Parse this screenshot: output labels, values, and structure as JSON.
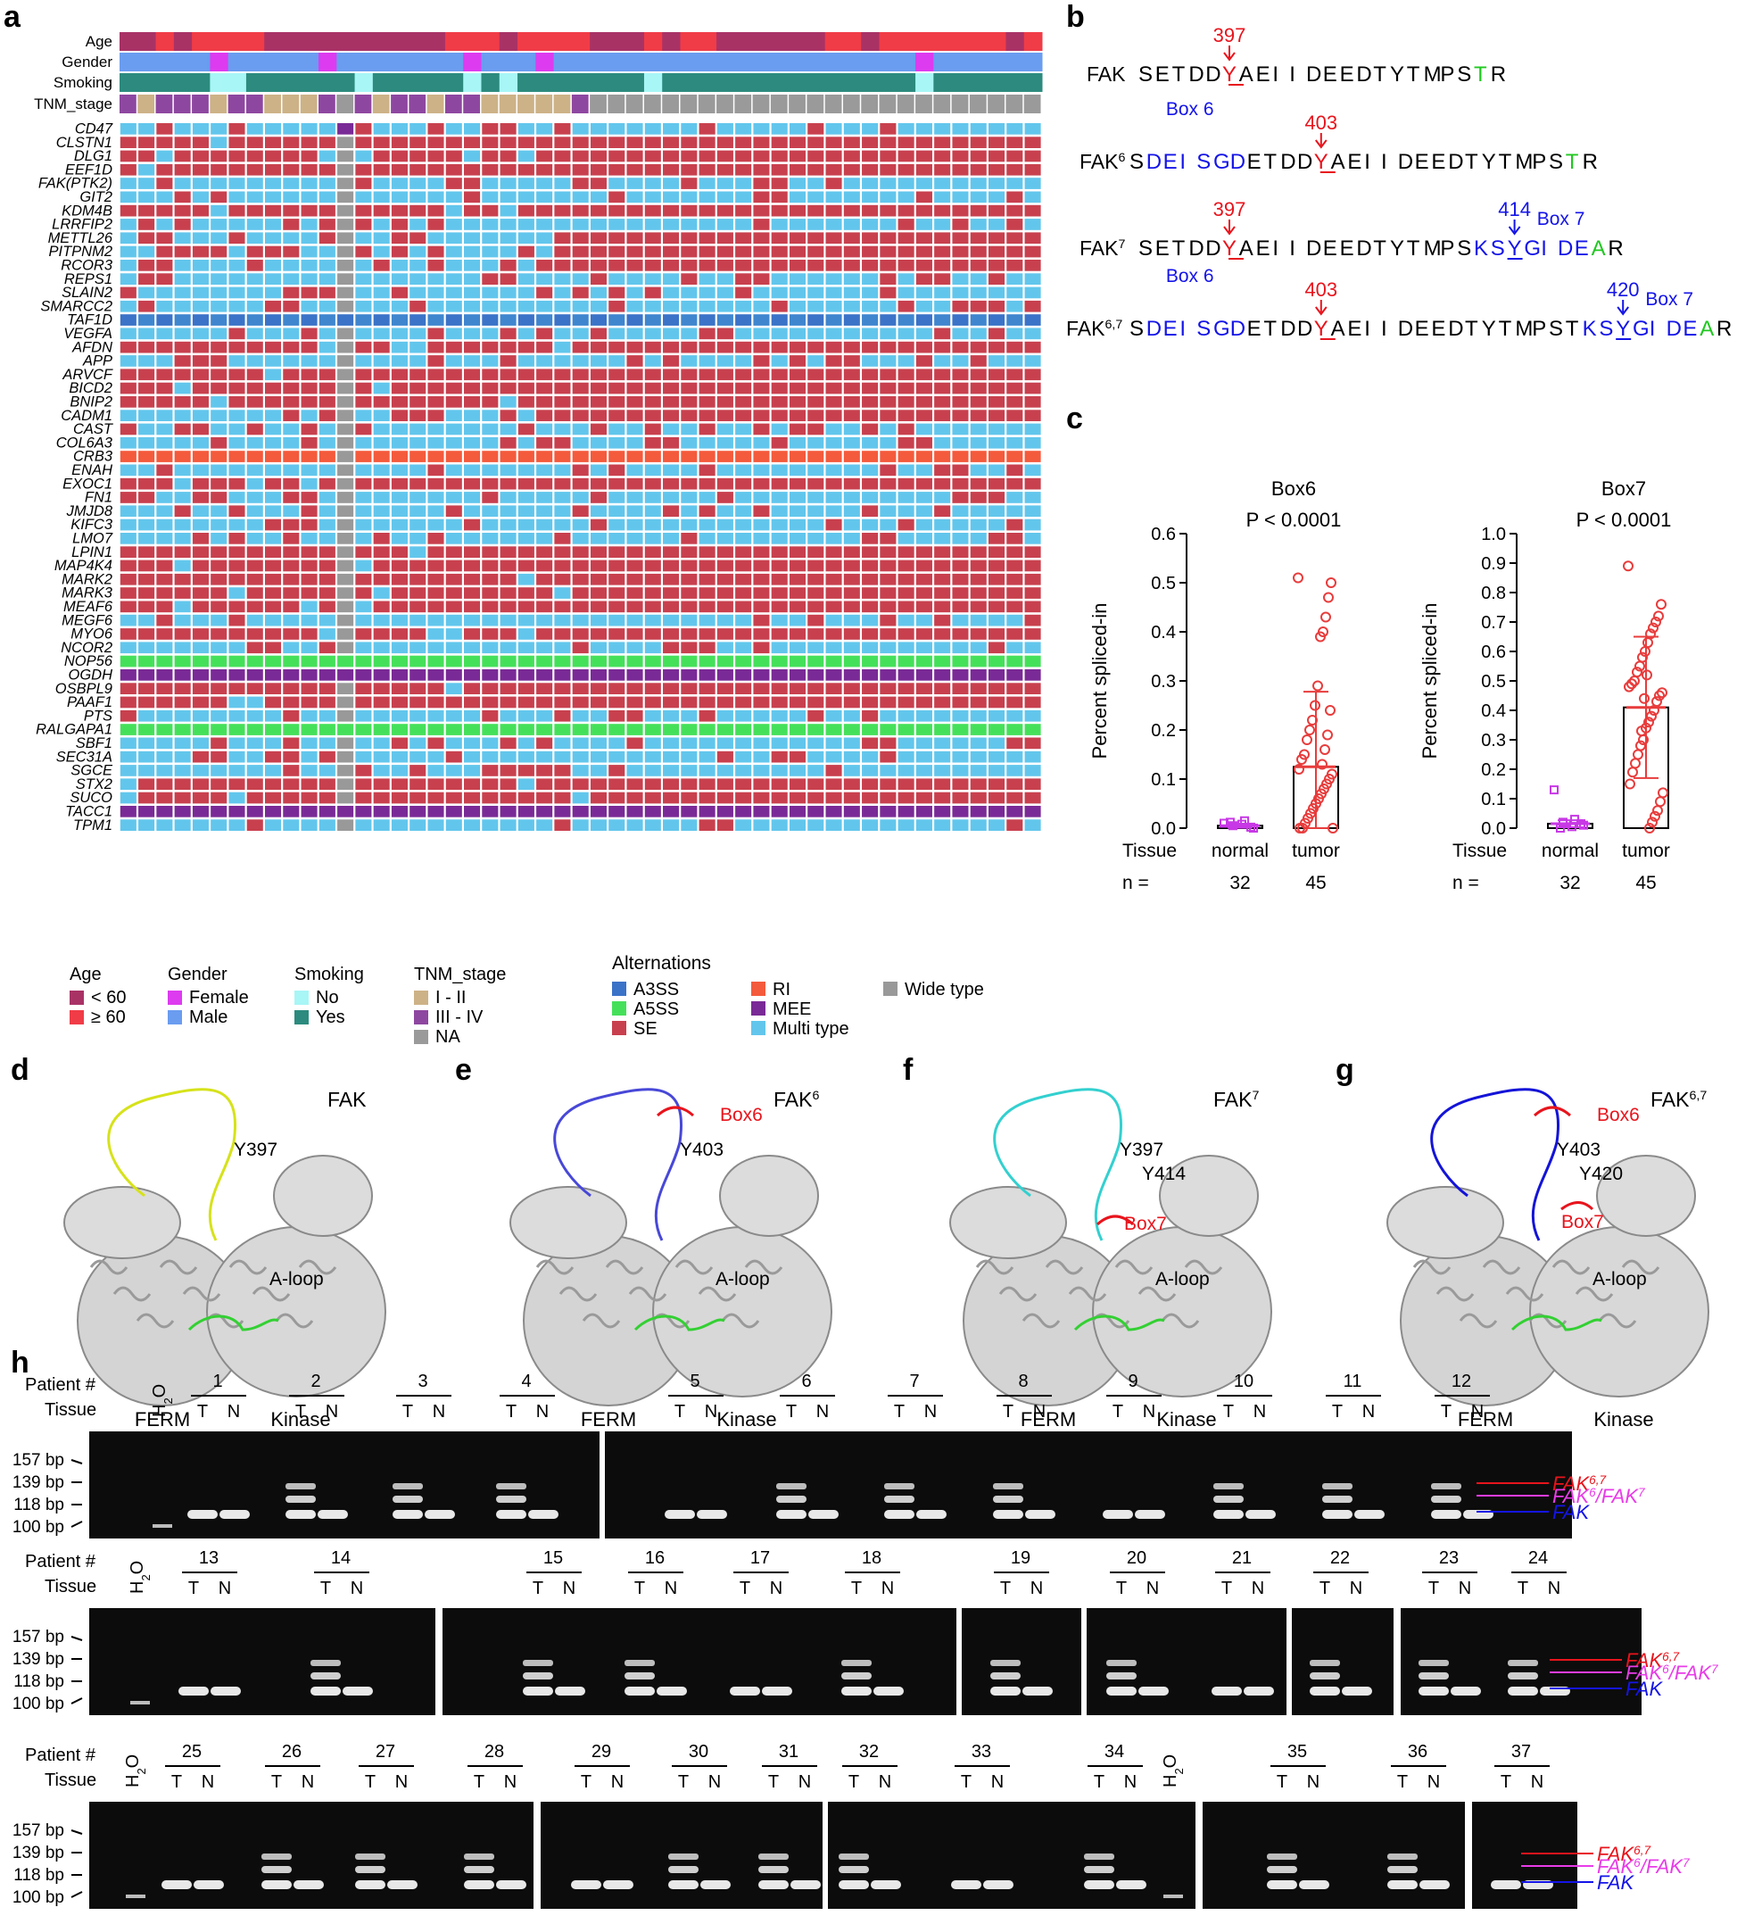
{
  "panel_labels": [
    "a",
    "b",
    "c",
    "d",
    "e",
    "f",
    "g",
    "h"
  ],
  "panel_a": {
    "annotation_rows": [
      "Age",
      "Gender",
      "Smoking",
      "TNM_stage"
    ],
    "genes": [
      "CD47",
      "CLSTN1",
      "DLG1",
      "EEF1D",
      "FAK(PTK2)",
      "GIT2",
      "KDM4B",
      "LRRFIP2",
      "METTL26",
      "PITPNM2",
      "RCOR3",
      "REPS1",
      "SLAIN2",
      "SMARCC2",
      "TAF1D",
      "VEGFA",
      "AFDN",
      "APP",
      "ARVCF",
      "BICD2",
      "BNIP2",
      "CADM1",
      "CAST",
      "COL6A3",
      "CRB3",
      "ENAH",
      "EXOC1",
      "FN1",
      "JMJD8",
      "KIFC3",
      "LMO7",
      "LPIN1",
      "MAP4K4",
      "MARK2",
      "MARK3",
      "MEAF6",
      "MEGF6",
      "MYO6",
      "NCOR2",
      "NOP56",
      "OGDH",
      "OSBPL9",
      "PAAF1",
      "PTS",
      "RALGAPA1",
      "SBF1",
      "SEC31A",
      "SGCE",
      "STX2",
      "SUCO",
      "TACC1",
      "TPM1"
    ],
    "legend": {
      "age": {
        "title": "Age",
        "items": [
          {
            "label": "< 60",
            "color": "#a93265"
          },
          {
            "label": "≥ 60",
            "color": "#f03c47"
          }
        ]
      },
      "gender": {
        "title": "Gender",
        "items": [
          {
            "label": "Female",
            "color": "#dd3bf0"
          },
          {
            "label": "Male",
            "color": "#6a9cf0"
          }
        ]
      },
      "smoking": {
        "title": "Smoking",
        "items": [
          {
            "label": "No",
            "color": "#a8f6f6"
          },
          {
            "label": "Yes",
            "color": "#2c8b7e"
          }
        ]
      },
      "tnm": {
        "title": "TNM_stage",
        "items": [
          {
            "label": "I - II",
            "color": "#cdb287"
          },
          {
            "label": "III - IV",
            "color": "#8e47a0"
          },
          {
            "label": "NA",
            "color": "#9a9a9a"
          }
        ]
      },
      "alternations": {
        "title": "Alternations",
        "items": [
          {
            "label": "A3SS",
            "color": "#3b73c8"
          },
          {
            "label": "A5SS",
            "color": "#45e05a"
          },
          {
            "label": "SE",
            "color": "#c8404e"
          },
          {
            "label": "RI",
            "color": "#f45a3c"
          },
          {
            "label": "MEE",
            "color": "#7a2a96"
          },
          {
            "label": "Multi type",
            "color": "#62c6ec"
          },
          {
            "label": "Wide type",
            "color": "#999999"
          }
        ]
      }
    }
  },
  "panel_b": {
    "rows": [
      {
        "name": "FAK",
        "sup": "",
        "pos": "397"
      },
      {
        "name": "FAK",
        "sup": "6",
        "pos": "403",
        "box6": "Box 6"
      },
      {
        "name": "FAK",
        "sup": "7",
        "pos": "397",
        "pos2": "414",
        "box7": "Box 7"
      },
      {
        "name": "FAK",
        "sup": "6,7",
        "pos": "403",
        "pos2": "420",
        "box6": "Box 6",
        "box7": "Box 7"
      }
    ],
    "seq_fak": "SETDDYAEIIDEEDTYTMPSTR",
    "box6_seq": "DEISGD"
  },
  "panel_c": {
    "chart_data": [
      {
        "type": "bar",
        "title": "Box6",
        "pvalue": "P < 0.0001",
        "ylabel": "Percent spliced-in",
        "ylim": [
          0,
          0.6
        ],
        "yticks": [
          "0.0",
          "0.1",
          "0.2",
          "0.3",
          "0.4",
          "0.5",
          "0.6"
        ],
        "categories": [
          "normal",
          "tumor"
        ],
        "values": [
          0.005,
          0.125
        ],
        "error": [
          0.004,
          0.153
        ],
        "n": [
          "32",
          "45"
        ],
        "tissue_label": "Tissue",
        "n_label": "n =",
        "points_tumor": [
          0.51,
          0.5,
          0.47,
          0.43,
          0.4,
          0.39,
          0.29,
          0.25,
          0.22,
          0.2,
          0.18,
          0.15,
          0.14,
          0.12,
          0.11,
          0.1,
          0.09,
          0.08,
          0.07,
          0.06,
          0.05,
          0.04,
          0.03,
          0.02,
          0.01,
          0,
          0,
          0,
          0.24,
          0.19,
          0.16,
          0.13
        ],
        "points_normal": [
          0.01,
          0.015,
          0.005,
          0,
          0.008,
          0.012,
          0.002
        ]
      },
      {
        "type": "bar",
        "title": "Box7",
        "pvalue": "P < 0.0001",
        "ylabel": "Percent spliced-in",
        "ylim": [
          0,
          1.0
        ],
        "yticks": [
          "0.0",
          "0.1",
          "0.2",
          "0.3",
          "0.4",
          "0.5",
          "0.6",
          "0.7",
          "0.8",
          "0.9",
          "1.0"
        ],
        "categories": [
          "normal",
          "tumor"
        ],
        "values": [
          0.015,
          0.41
        ],
        "error": [
          0.012,
          0.24
        ],
        "n": [
          "32",
          "45"
        ],
        "tissue_label": "Tissue",
        "n_label": "n =",
        "points_tumor": [
          0.89,
          0.76,
          0.72,
          0.7,
          0.68,
          0.66,
          0.63,
          0.6,
          0.58,
          0.55,
          0.53,
          0.5,
          0.49,
          0.48,
          0.46,
          0.45,
          0.43,
          0.4,
          0.38,
          0.36,
          0.34,
          0.3,
          0.28,
          0.25,
          0.22,
          0.19,
          0.15,
          0.12,
          0.09,
          0.06,
          0.04,
          0.02,
          0.0,
          0.52,
          0.44,
          0.33
        ],
        "points_normal": [
          0.13,
          0.03,
          0.02,
          0.01,
          0.005,
          0.0,
          0.015
        ]
      }
    ]
  },
  "panel_dg": [
    {
      "label": "d",
      "name": "FAK",
      "sup": "",
      "tyr": "Y397",
      "color": "#d6e21a"
    },
    {
      "label": "e",
      "name": "FAK",
      "sup": "6",
      "tyr": "Y403",
      "box": "Box6",
      "color": "#4848d8"
    },
    {
      "label": "f",
      "name": "FAK",
      "sup": "7",
      "tyr": "Y397",
      "tyr2": "Y414",
      "box": "Box7",
      "color": "#33d0cf"
    },
    {
      "label": "g",
      "name": "FAK",
      "sup": "6,7",
      "tyr": "Y403",
      "tyr2": "Y420",
      "box": "Box6",
      "box2": "Box7",
      "color": "#1414d8"
    }
  ],
  "struct_labels": {
    "aloop": "A-loop",
    "ferm": "FERM",
    "kinase": "Kinase"
  },
  "panel_h": {
    "patient_label": "Patient #",
    "tissue_label": "Tissue",
    "water": "H",
    "water_sub": "2",
    "water_o": "O",
    "ladder": [
      "157 bp",
      "139 bp",
      "118 bp",
      "100 bp"
    ],
    "band_labels": [
      {
        "text": "FAK",
        "sup": "6,7",
        "color": "#e8141c"
      },
      {
        "text": "FAK",
        "sup": "6",
        "text2": "/FAK",
        "sup2": "7",
        "color": "#e83ce8"
      },
      {
        "text": "FAK",
        "sup": "",
        "color": "#1414e8"
      }
    ],
    "row1": [
      "1",
      "2",
      "3",
      "4",
      "5",
      "6",
      "7",
      "8",
      "9",
      "10",
      "11",
      "12"
    ],
    "row2": [
      "13",
      "14",
      "15",
      "16",
      "17",
      "18",
      "19",
      "20",
      "21",
      "22",
      "23",
      "24"
    ],
    "row3": [
      "25",
      "26",
      "27",
      "28",
      "29",
      "30",
      "31",
      "32",
      "33",
      "34",
      "35",
      "36",
      "37"
    ],
    "T": "T",
    "N": "N"
  }
}
